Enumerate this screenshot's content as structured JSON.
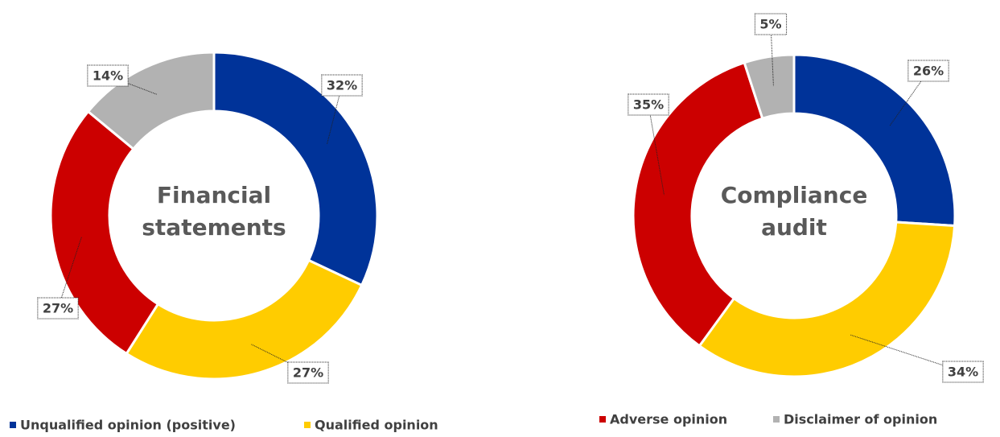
{
  "chart_data": [
    {
      "type": "pie",
      "title": "Financial statements",
      "categories": [
        "Unqualified opinion (positive)",
        "Qualified opinion",
        "Adverse opinion",
        "Disclaimer of opinion"
      ],
      "values": [
        32,
        27,
        27,
        14
      ],
      "value_labels": [
        "32%",
        "27%",
        "27%",
        "14%"
      ],
      "colors": [
        "#003399",
        "#FFCC00",
        "#CC0000",
        "#B2B2B2"
      ]
    },
    {
      "type": "pie",
      "title": "Compliance audit",
      "categories": [
        "Unqualified opinion (positive)",
        "Qualified opinion",
        "Adverse opinion",
        "Disclaimer of opinion"
      ],
      "values": [
        26,
        34,
        35,
        5
      ],
      "value_labels": [
        "26%",
        "34%",
        "35%",
        "5%"
      ],
      "colors": [
        "#003399",
        "#FFCC00",
        "#CC0000",
        "#B2B2B2"
      ]
    }
  ]
}
